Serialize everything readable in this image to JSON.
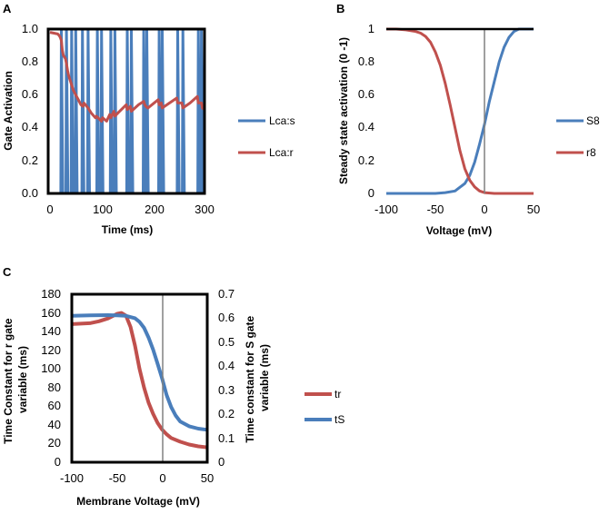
{
  "chart_data": [
    {
      "panel": "A",
      "type": "line",
      "xlabel": "Time (ms)",
      "ylabel": "Gate Activation",
      "xlim": [
        0,
        300
      ],
      "ylim": [
        0,
        1
      ],
      "xticks": [
        "0",
        "100",
        "200",
        "300"
      ],
      "yticks": [
        "0.0",
        "0.2",
        "0.4",
        "0.6",
        "0.8",
        "1.0"
      ],
      "legend_position": "right",
      "series": [
        {
          "name": "Lca:s",
          "color": "#4a7ebb",
          "spike_times": [
            22,
            32,
            42,
            50,
            63,
            74,
            92,
            100,
            118,
            126,
            150,
            158,
            182,
            188,
            212,
            218,
            248,
            258,
            288,
            294
          ],
          "baseline": 0.0,
          "peak": 1.0
        },
        {
          "name": "Lca:r",
          "color": "#c0504d",
          "x": [
            0,
            15,
            18,
            20,
            22,
            24,
            26,
            28,
            30,
            32,
            34,
            36,
            38,
            40,
            42,
            45,
            50,
            55,
            60,
            64,
            66,
            74,
            80,
            88,
            90,
            100,
            102,
            110,
            116,
            118,
            124,
            126,
            132,
            148,
            150,
            156,
            158,
            172,
            182,
            184,
            186,
            190,
            210,
            212,
            216,
            218,
            232,
            246,
            248,
            256,
            258,
            272,
            286,
            288,
            294,
            296,
            300
          ],
          "y": [
            0.98,
            0.97,
            0.96,
            0.95,
            0.93,
            0.87,
            0.84,
            0.83,
            0.82,
            0.79,
            0.75,
            0.72,
            0.7,
            0.68,
            0.66,
            0.63,
            0.6,
            0.57,
            0.54,
            0.53,
            0.55,
            0.52,
            0.49,
            0.46,
            0.47,
            0.44,
            0.46,
            0.44,
            0.48,
            0.46,
            0.5,
            0.47,
            0.49,
            0.54,
            0.51,
            0.53,
            0.5,
            0.54,
            0.56,
            0.54,
            0.53,
            0.52,
            0.57,
            0.54,
            0.55,
            0.52,
            0.55,
            0.58,
            0.55,
            0.55,
            0.52,
            0.55,
            0.59,
            0.55,
            0.55,
            0.52,
            0.51
          ]
        }
      ]
    },
    {
      "panel": "B",
      "type": "line",
      "xlabel": "Voltage (mV)",
      "ylabel": "Steady state activation (0 -1)",
      "xlim": [
        -100,
        50
      ],
      "ylim": [
        0,
        1
      ],
      "xticks": [
        "-100",
        "-50",
        "0",
        "50"
      ],
      "yticks": [
        "0",
        "0.2",
        "0.4",
        "0.6",
        "0.8",
        "1"
      ],
      "vline_at": 0,
      "legend_position": "right",
      "series": [
        {
          "name": "S8",
          "color": "#4a7ebb",
          "x": [
            -100,
            -90,
            -80,
            -70,
            -60,
            -50,
            -40,
            -30,
            -20,
            -15,
            -10,
            -5,
            0,
            5,
            10,
            15,
            20,
            25,
            30,
            35,
            40,
            45,
            50
          ],
          "y": [
            0.0,
            0.0,
            0.0,
            0.0,
            0.0,
            0.0,
            0.005,
            0.015,
            0.06,
            0.11,
            0.19,
            0.3,
            0.42,
            0.56,
            0.68,
            0.8,
            0.89,
            0.95,
            0.985,
            1.0,
            1.0,
            1.0,
            1.0
          ]
        },
        {
          "name": "r8",
          "color": "#c0504d",
          "x": [
            -100,
            -90,
            -80,
            -70,
            -65,
            -60,
            -55,
            -50,
            -45,
            -40,
            -35,
            -30,
            -25,
            -20,
            -15,
            -10,
            -5,
            0,
            10,
            20,
            30,
            40,
            50
          ],
          "y": [
            1.0,
            1.0,
            0.995,
            0.985,
            0.975,
            0.955,
            0.92,
            0.86,
            0.78,
            0.67,
            0.54,
            0.4,
            0.26,
            0.15,
            0.08,
            0.04,
            0.015,
            0.005,
            0.0,
            0.0,
            0.0,
            0.0,
            0.0
          ]
        }
      ]
    },
    {
      "panel": "C",
      "type": "line",
      "xlabel": "Membrane Voltage (mV)",
      "ylabel_left": "Time Constant for r gate variable (ms)",
      "ylabel_right": "Time constant for S gate variable (ms)",
      "xlim": [
        -100,
        50
      ],
      "ylim_left": [
        0,
        180
      ],
      "ylim_right": [
        0,
        0.7
      ],
      "xticks": [
        "-100",
        "-50",
        "0",
        "50"
      ],
      "yticks_left": [
        "0",
        "20",
        "40",
        "60",
        "80",
        "100",
        "120",
        "140",
        "160",
        "180"
      ],
      "yticks_right": [
        "0",
        "0.1",
        "0.2",
        "0.3",
        "0.4",
        "0.5",
        "0.6",
        "0.7"
      ],
      "vline_at": 0,
      "legend_position": "right",
      "series": [
        {
          "name": "tr",
          "color": "#c0504d",
          "axis": "left",
          "x": [
            -100,
            -80,
            -70,
            -60,
            -50,
            -45,
            -40,
            -35,
            -30,
            -25,
            -20,
            -15,
            -10,
            -5,
            0,
            5,
            10,
            20,
            30,
            40,
            50
          ],
          "y": [
            148,
            149,
            151,
            154,
            159,
            160,
            157,
            145,
            125,
            100,
            80,
            64,
            52,
            42,
            35,
            30,
            26,
            22,
            19,
            17,
            16
          ]
        },
        {
          "name": "tS",
          "color": "#4a7ebb",
          "axis": "right",
          "x": [
            -100,
            -80,
            -60,
            -50,
            -40,
            -30,
            -25,
            -20,
            -15,
            -10,
            -5,
            0,
            5,
            10,
            15,
            20,
            30,
            40,
            50
          ],
          "y": [
            0.61,
            0.612,
            0.613,
            0.612,
            0.61,
            0.6,
            0.585,
            0.56,
            0.52,
            0.47,
            0.41,
            0.35,
            0.28,
            0.23,
            0.195,
            0.17,
            0.15,
            0.14,
            0.135
          ]
        }
      ]
    }
  ]
}
